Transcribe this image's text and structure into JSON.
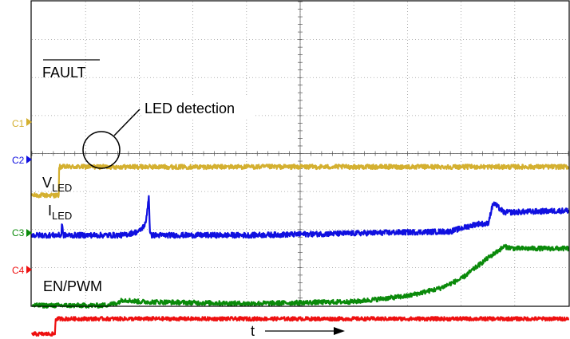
{
  "chart_data": {
    "type": "line",
    "title": "",
    "xlabel": "t",
    "ylabel": "",
    "grid": true,
    "grid_divisions": {
      "x": 10,
      "y": 8
    },
    "channel_labels": [
      "C1",
      "C2",
      "C3",
      "C4"
    ],
    "signal_labels": {
      "fault": "FAULT",
      "vled_main": "V",
      "vled_sub": "LED",
      "iled_main": "I",
      "iled_sub": "LED",
      "en_pwm": "EN/PWM"
    },
    "annotation": "LED detection",
    "series": [
      {
        "name": "FAULT",
        "channel": "C1",
        "color": "#d4b030",
        "x": [
          0,
          0.5,
          0.5,
          0.52,
          0.6,
          10
        ],
        "y": [
          -1.1,
          -1.1,
          -0.45,
          -0.35,
          -0.35,
          -0.35
        ],
        "noise": 0.06
      },
      {
        "name": "VLED",
        "channel": "C2",
        "color": "#1010e0",
        "x": [
          0,
          0.55,
          0.56,
          0.58,
          1.7,
          2.0,
          2.12,
          2.18,
          2.2,
          2.22,
          4.0,
          6.0,
          7.8,
          8.3,
          8.5,
          8.6,
          8.8,
          10
        ],
        "y": [
          -2.15,
          -2.15,
          -1.75,
          -2.15,
          -2.15,
          -2.05,
          -1.85,
          -1.1,
          -2.1,
          -2.15,
          -2.15,
          -2.1,
          -2.05,
          -1.85,
          -1.85,
          -1.3,
          -1.55,
          -1.5
        ],
        "noise": 0.07
      },
      {
        "name": "ILED",
        "channel": "C3",
        "color": "#0a8a0a",
        "x": [
          0,
          1.3,
          1.55,
          1.7,
          2.0,
          4.0,
          6.0,
          7.0,
          7.6,
          8.0,
          8.5,
          8.8,
          9.0,
          10
        ],
        "y": [
          -4.0,
          -4.0,
          -3.95,
          -3.85,
          -3.9,
          -3.95,
          -3.9,
          -3.75,
          -3.55,
          -3.3,
          -2.75,
          -2.45,
          -2.5,
          -2.5
        ],
        "noise": 0.06
      },
      {
        "name": "EN/PWM",
        "channel": "C4",
        "color": "#ee1010",
        "x": [
          0,
          0.43,
          0.44,
          10
        ],
        "y": [
          -4.75,
          -4.75,
          -4.35,
          -4.35
        ],
        "noise": 0.05
      }
    ]
  }
}
